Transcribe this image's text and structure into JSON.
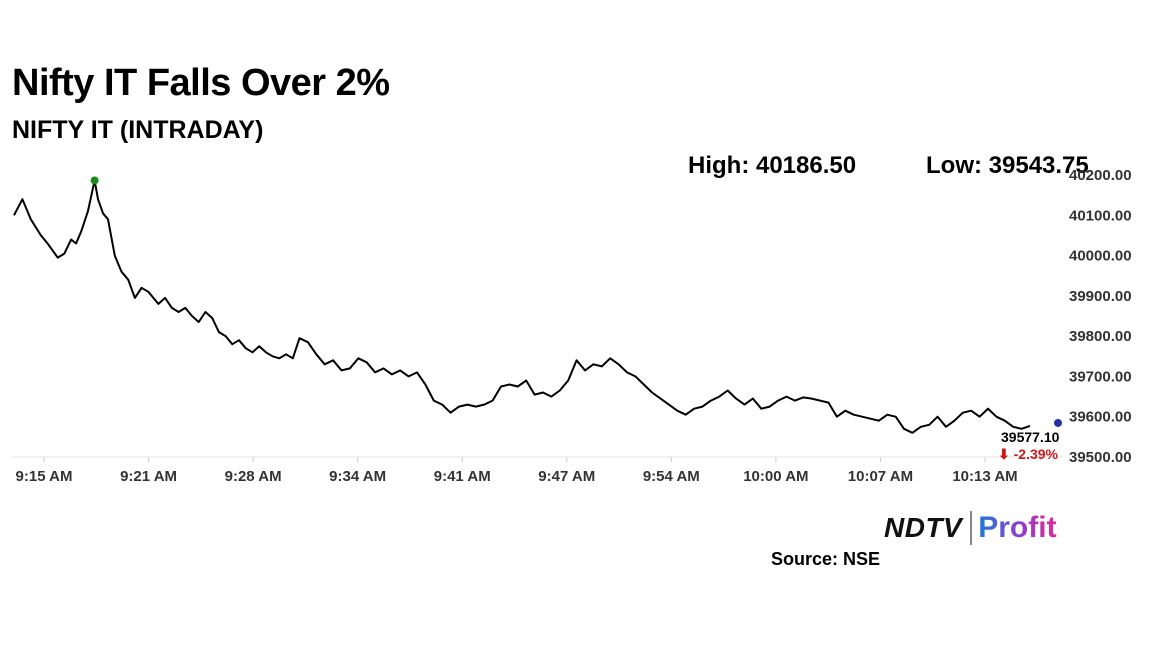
{
  "header": {
    "title": "Nifty IT Falls Over 2%",
    "subtitle": "NIFTY IT (INTRADAY)",
    "high_text": "High: 40186.50",
    "low_text": "Low: 39543.75"
  },
  "footer": {
    "logo_left": "NDTV",
    "logo_right": "Profit",
    "source": "Source: NSE"
  },
  "colors": {
    "line": "#000000",
    "high_marker": "#1e8a1e",
    "last_marker": "#2233aa",
    "change_negative": "#d01818",
    "grid": "#e6e6e6"
  },
  "chart_data": {
    "type": "line",
    "title": "Nifty IT Falls Over 2%",
    "subtitle": "NIFTY IT (INTRADAY)",
    "xlabel": "",
    "ylabel": "",
    "ylim": [
      39500,
      40200
    ],
    "x_ticks": [
      "9:15 AM",
      "9:21 AM",
      "9:28 AM",
      "9:34 AM",
      "9:41 AM",
      "9:47 AM",
      "9:54 AM",
      "10:00 AM",
      "10:07 AM",
      "10:13 AM"
    ],
    "y_ticks": [
      "40200.00",
      "40100.00",
      "40000.00",
      "39900.00",
      "39800.00",
      "39700.00",
      "39600.00",
      "39500.00"
    ],
    "grid": false,
    "high": 40186.5,
    "low": 39543.75,
    "last_value_label": "39577.10",
    "change_label": "⬇ -2.39%",
    "x_minutes_from_open": [
      0,
      0.5,
      1,
      1.6,
      2,
      2.6,
      3,
      3.4,
      3.7,
      4,
      4.4,
      4.8,
      5,
      5.3,
      5.6,
      6,
      6.4,
      6.8,
      7.2,
      7.6,
      8,
      8.3,
      8.6,
      9,
      9.4,
      9.8,
      10.2,
      10.6,
      11,
      11.4,
      11.8,
      12.2,
      12.6,
      13,
      13.4,
      13.8,
      14.2,
      14.6,
      15,
      15.4,
      15.8,
      16.2,
      16.6,
      17,
      17.5,
      18,
      18.5,
      19,
      19.5,
      20,
      20.5,
      21,
      21.5,
      22,
      22.5,
      23,
      23.5,
      24,
      24.5,
      25,
      25.5,
      26,
      26.5,
      27,
      27.5,
      28,
      28.5,
      29,
      29.5,
      30,
      30.5,
      31,
      31.5,
      32,
      32.5,
      33,
      33.5,
      34,
      34.5,
      35,
      35.5,
      36,
      36.5,
      37,
      37.5,
      38,
      38.5,
      39,
      39.5,
      40,
      40.5,
      41,
      41.5,
      42,
      42.5,
      43,
      43.5,
      44,
      44.5,
      45,
      45.5,
      46,
      46.5,
      47,
      47.5,
      48,
      48.5,
      49,
      49.5,
      50,
      50.5,
      51,
      51.5,
      52,
      52.5,
      53,
      53.5,
      54,
      54.5,
      55,
      55.5,
      56,
      56.5,
      57,
      57.5,
      58,
      58.5,
      59,
      59.5,
      60,
      60.5
    ],
    "series": [
      {
        "values": [
          40100,
          40140,
          40090,
          40050,
          40030,
          39995,
          40005,
          40040,
          40030,
          40060,
          40110,
          40186.5,
          40140,
          40105,
          40090,
          40000,
          39960,
          39940,
          39895,
          39920,
          39910,
          39895,
          39880,
          39895,
          39870,
          39860,
          39870,
          39850,
          39835,
          39860,
          39845,
          39810,
          39800,
          39780,
          39790,
          39770,
          39760,
          39775,
          39760,
          39750,
          39745,
          39755,
          39745,
          39795,
          39785,
          39755,
          39730,
          39740,
          39715,
          39720,
          39745,
          39735,
          39710,
          39720,
          39705,
          39715,
          39700,
          39710,
          39680,
          39640,
          39630,
          39610,
          39625,
          39630,
          39625,
          39630,
          39640,
          39675,
          39680,
          39675,
          39690,
          39655,
          39660,
          39650,
          39665,
          39690,
          39740,
          39715,
          39730,
          39725,
          39745,
          39730,
          39710,
          39700,
          39680,
          39660,
          39645,
          39630,
          39615,
          39605,
          39620,
          39625,
          39640,
          39650,
          39665,
          39645,
          39630,
          39645,
          39620,
          39625,
          39640,
          39650,
          39640,
          39648,
          39645,
          39640,
          39635,
          39600,
          39615,
          39605,
          39600,
          39595,
          39590,
          39605,
          39600,
          39570,
          39560,
          39575,
          39580,
          39600,
          39575,
          39590,
          39610,
          39615,
          39600,
          39620,
          39600,
          39590,
          39575,
          39570,
          39577.1
        ]
      }
    ]
  }
}
